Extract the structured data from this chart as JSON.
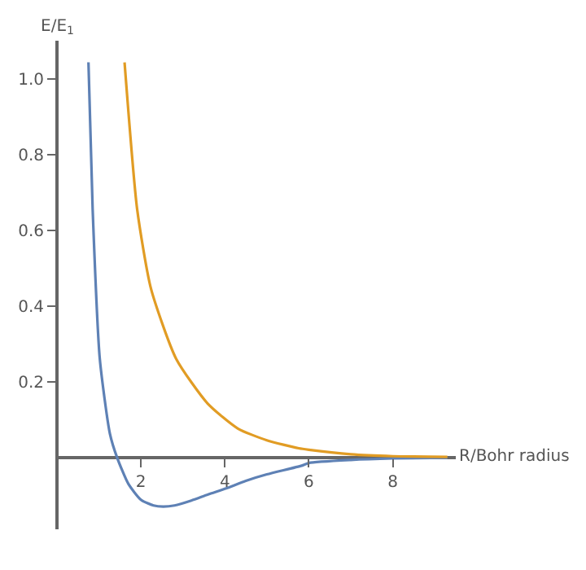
{
  "chart_data": {
    "type": "line",
    "xlabel": "R/Bohr radius",
    "ylabel": "E/E$_{1}$",
    "xlim": [
      0,
      9.5
    ],
    "ylim": [
      -0.19,
      1.1
    ],
    "xticks": [
      2,
      4,
      6,
      8
    ],
    "yticks": [
      0.2,
      0.4,
      0.6,
      0.8,
      {
        "value": 1.0,
        "label": "1.0"
      }
    ],
    "legend": false,
    "marker": "none",
    "line_style": "solid",
    "series": [
      {
        "color": "#5e81b5",
        "x": [
          0.75,
          0.85,
          1.02,
          1.26,
          1.43,
          1.7,
          2.0,
          2.3,
          2.53,
          2.8,
          3.2,
          3.6,
          4.03,
          4.5,
          5.0,
          5.83,
          6.0,
          7.0,
          8.0,
          9.3
        ],
        "values": [
          1.043,
          0.655,
          0.26,
          0.063,
          0.0,
          -0.07,
          -0.112,
          -0.127,
          -0.13,
          -0.127,
          -0.114,
          -0.098,
          -0.082,
          -0.062,
          -0.045,
          -0.022,
          -0.015,
          -0.007,
          -0.003,
          -0.001
        ]
      },
      {
        "color": "#e19c24",
        "x": [
          1.61,
          1.91,
          2.24,
          2.84,
          3.59,
          4.31,
          5.0,
          5.76,
          6.0,
          7.0,
          8.0,
          9.3
        ],
        "values": [
          1.043,
          0.655,
          0.445,
          0.26,
          0.142,
          0.076,
          0.045,
          0.024,
          0.02,
          0.008,
          0.003,
          0.001
        ]
      }
    ]
  }
}
